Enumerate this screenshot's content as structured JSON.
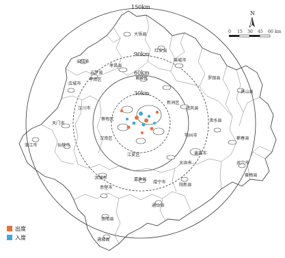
{
  "rings": {
    "r150": "150km",
    "r90": "90km",
    "r60": "60km",
    "r30": "30km"
  },
  "north_label": "N",
  "scale": {
    "ticks": [
      "0",
      "15",
      "30",
      "45",
      "60"
    ],
    "unit": "km"
  },
  "places": {
    "dawu": "大悟县",
    "hongan": "红安县",
    "macheng": "麻城市",
    "anlu": "安陆市",
    "xiaochang": "孝昌县",
    "yingcheng": "应城市",
    "huangpi": "黄陂区",
    "luotian": "罗田县",
    "yingshan": "英山县",
    "xinzhou": "新洲区",
    "hanchuan": "汉川市",
    "xiaonan": "孝南区",
    "yunmeng": "云梦县",
    "tuanfeng": "团风县",
    "xishui": "浠水县",
    "qichun": "蕲春县",
    "tianmen": "天门市",
    "xiantao": "仙桃市",
    "qianjiang": "潜江市",
    "caidian": "蔡甸区",
    "hannan": "汉南区",
    "jiangxia": "江夏区",
    "ezhou": "鄂州市",
    "huangshi": "黄石市",
    "daye": "大冶市",
    "wuxue": "武穴市",
    "huangmei": "黄梅县",
    "jiayu": "嘉鱼县",
    "xianning": "咸宁市",
    "yangxin": "阳新县",
    "honghu": "洪湖市",
    "chibi": "赤壁市",
    "tongshan": "通山县",
    "chongyang": "崇阳县",
    "tongcheng": "通城县"
  },
  "legend": {
    "outflow_label": "出度",
    "inflow_label": "入度",
    "outflow_color": "#e8703a",
    "inflow_color": "#3aa8e0"
  }
}
